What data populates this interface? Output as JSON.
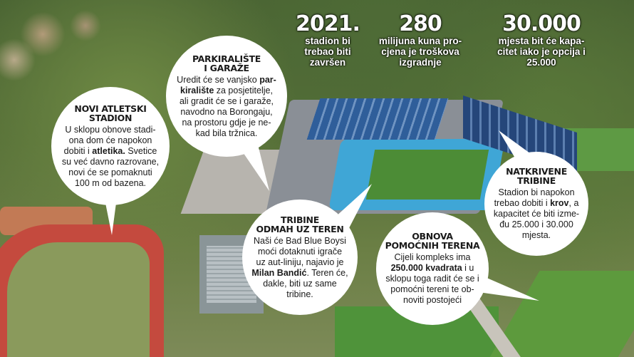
{
  "stats": [
    {
      "number": "2021.",
      "lines": [
        "stadion bi",
        "trebao biti",
        "završen"
      ]
    },
    {
      "number": "280",
      "lines": [
        "milijuna kuna pro-",
        "cjena je troškova",
        "izgradnje"
      ]
    },
    {
      "number": "30.000",
      "lines": [
        "mjesta bit će kapa-",
        "citet iako je opcija i",
        "25.000"
      ]
    }
  ],
  "bubbles": [
    {
      "title": [
        "NOVI ATLETSKI",
        "STADION"
      ],
      "lines": [
        [
          {
            "t": "U sklopu obnove stadi-"
          }
        ],
        [
          {
            "t": "ona dom će napokon"
          }
        ],
        [
          {
            "t": "dobiti i "
          },
          {
            "t": "atletika.",
            "b": true
          },
          {
            "t": " Svetice"
          }
        ],
        [
          {
            "t": "su već davno razrovane,"
          }
        ],
        [
          {
            "t": "novi će se pomaknuti"
          }
        ],
        [
          {
            "t": "100 m od bazena."
          }
        ]
      ]
    },
    {
      "title": [
        "PARKIRALIŠTE",
        "I GARAŽE"
      ],
      "lines": [
        [
          {
            "t": "Uredit će se vanjsko "
          },
          {
            "t": "par-",
            "b": true
          }
        ],
        [
          {
            "t": "kiralište",
            "b": true
          },
          {
            "t": " za posjetitelje,"
          }
        ],
        [
          {
            "t": "ali gradit će se i garaže,"
          }
        ],
        [
          {
            "t": "navodno na Borongaju,"
          }
        ],
        [
          {
            "t": "na prostoru gdje je ne-"
          }
        ],
        [
          {
            "t": "kad bila tržnica."
          }
        ]
      ]
    },
    {
      "title": [
        "TRIBINE",
        "ODMAH UZ TEREN"
      ],
      "lines": [
        [
          {
            "t": "Naši će Bad Blue Boysi"
          }
        ],
        [
          {
            "t": "moći dotaknuti igrače"
          }
        ],
        [
          {
            "t": "uz aut-liniju, najavio je"
          }
        ],
        [
          {
            "t": "Milan Bandić",
            "b": true
          },
          {
            "t": ". Teren će,"
          }
        ],
        [
          {
            "t": "dakle, biti uz same"
          }
        ],
        [
          {
            "t": "tribine."
          }
        ]
      ]
    },
    {
      "title": [
        "OBNOVA",
        "POMOĆNIH TERENA"
      ],
      "lines": [
        [
          {
            "t": "Cijeli kompleks ima"
          }
        ],
        [
          {
            "t": "250.000 kvadrata",
            "b": true
          },
          {
            "t": " i u"
          }
        ],
        [
          {
            "t": "sklopu toga radit će se i"
          }
        ],
        [
          {
            "t": "pomoćni tereni te ob-"
          }
        ],
        [
          {
            "t": "noviti postojeći"
          }
        ]
      ]
    },
    {
      "title": [
        "NATKRIVENE",
        "TRIBINE"
      ],
      "lines": [
        [
          {
            "t": "Stadion bi napokon"
          }
        ],
        [
          {
            "t": "trebao dobiti i "
          },
          {
            "t": "krov",
            "b": true
          },
          {
            "t": ", a"
          }
        ],
        [
          {
            "t": "kapacitet će biti izme-"
          }
        ],
        [
          {
            "t": "đu 25.000 i 30.000"
          }
        ],
        [
          {
            "t": "mjesta."
          }
        ]
      ]
    }
  ],
  "colors": {
    "bubble": "#ffffff",
    "stat_text": "#ffffff",
    "text": "#1a1a1a"
  }
}
